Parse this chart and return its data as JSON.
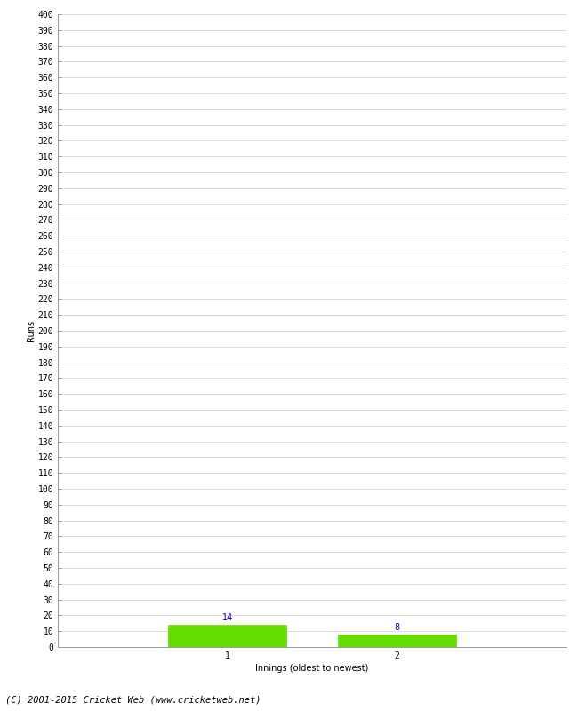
{
  "categories": [
    1,
    2
  ],
  "values": [
    14,
    8
  ],
  "bar_color": "#66dd00",
  "bar_edge_color": "#66dd00",
  "xlabel": "Innings (oldest to newest)",
  "ylabel": "Runs",
  "ylim": [
    0,
    400
  ],
  "ytick_step": 10,
  "xlim": [
    0,
    3
  ],
  "label_color": "#0000cc",
  "label_fontsize": 7,
  "axis_fontsize": 7,
  "tick_fontsize": 7,
  "footer": "(C) 2001-2015 Cricket Web (www.cricketweb.net)",
  "footer_fontsize": 7.5,
  "background_color": "#ffffff",
  "grid_color": "#cccccc",
  "bar_width": 0.7
}
